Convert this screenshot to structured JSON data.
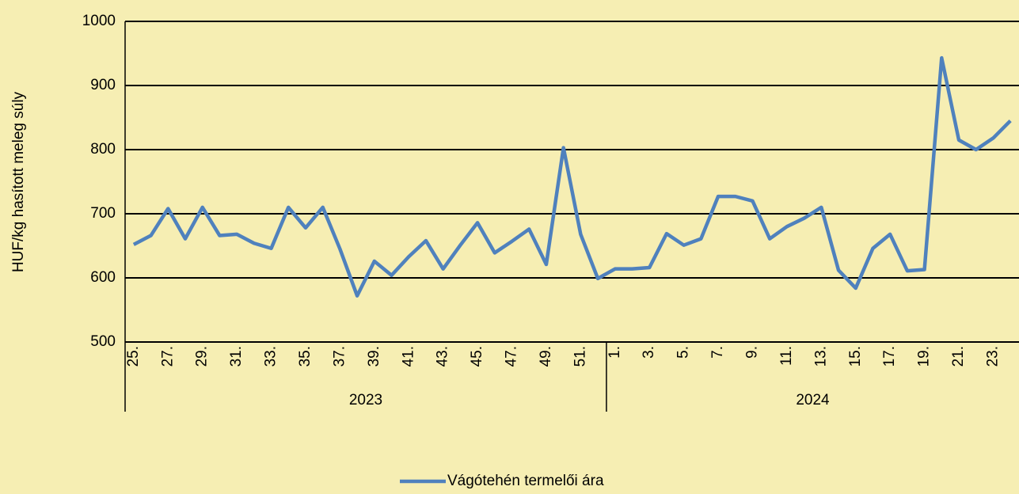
{
  "chart_data": {
    "type": "line",
    "y_label": "HUF/kg hasított meleg súly",
    "groups": [
      {
        "name": "2023",
        "categories": [
          "25.",
          null,
          "27.",
          null,
          "29.",
          null,
          "31.",
          null,
          "33.",
          null,
          "35.",
          null,
          "37.",
          null,
          "39.",
          null,
          "41.",
          null,
          "43.",
          null,
          "45.",
          null,
          "47.",
          null,
          "49.",
          null,
          "51.",
          null
        ]
      },
      {
        "name": "2024",
        "categories": [
          "1.",
          null,
          "3.",
          null,
          "5.",
          null,
          "7.",
          null,
          "9.",
          null,
          "11.",
          null,
          "13.",
          null,
          "15.",
          null,
          "17.",
          null,
          "19.",
          null,
          "21.",
          null,
          "23.",
          null
        ]
      }
    ],
    "series": [
      {
        "name": "Vágótehén termelői ára",
        "color": "#4f81bd",
        "values": [
          652,
          666,
          708,
          661,
          710,
          666,
          668,
          654,
          646,
          710,
          678,
          710,
          645,
          572,
          626,
          604,
          633,
          658,
          614,
          651,
          686,
          639,
          657,
          676,
          621,
          803,
          668,
          599,
          614,
          614,
          616,
          669,
          651,
          661,
          727,
          727,
          720,
          661,
          680,
          693,
          710,
          612,
          584,
          646,
          668,
          611,
          613,
          943,
          815,
          800,
          818,
          845
        ]
      }
    ],
    "ylim": [
      500,
      1000
    ],
    "yticks": [
      500,
      600,
      700,
      800,
      900,
      1000
    ],
    "grid": true,
    "legend": "bottom"
  }
}
